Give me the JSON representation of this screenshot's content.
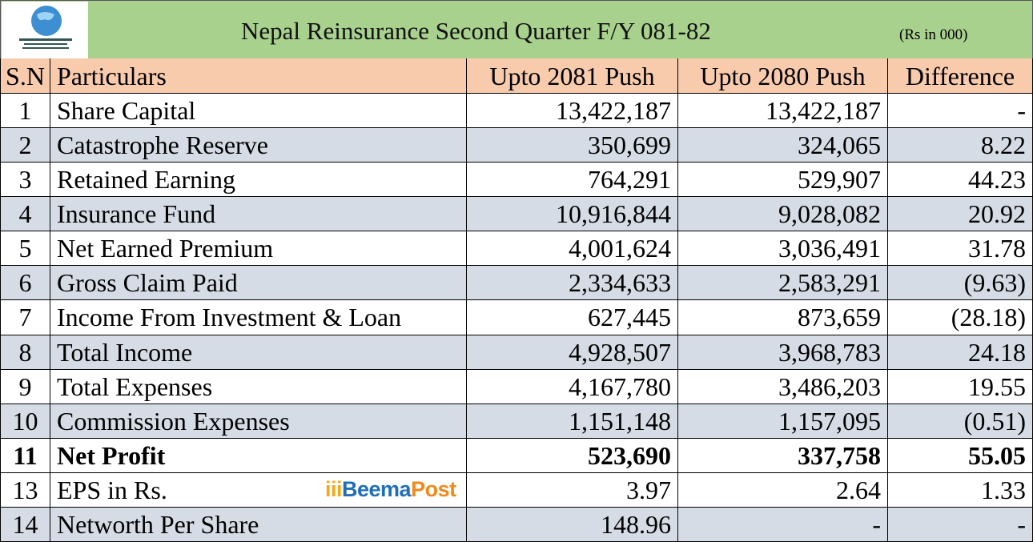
{
  "header": {
    "title": "Nepal Reinsurance Second Quarter F/Y 081-82",
    "unit": "(Rs in 000)"
  },
  "watermark": {
    "part1": "Beema",
    "part2": "Post"
  },
  "table": {
    "columns": [
      "S.N",
      "Particulars",
      "Upto 2081 Push",
      "Upto 2080 Push",
      "Difference"
    ],
    "rows": [
      [
        "1",
        "Share Capital",
        "13,422,187",
        "13,422,187",
        "-"
      ],
      [
        "2",
        "Catastrophe Reserve",
        "350,699",
        "324,065",
        "8.22"
      ],
      [
        "3",
        "Retained Earning",
        "764,291",
        "529,907",
        "44.23"
      ],
      [
        "4",
        "Insurance Fund",
        "10,916,844",
        "9,028,082",
        "20.92"
      ],
      [
        "5",
        "Net Earned Premium",
        "4,001,624",
        "3,036,491",
        "31.78"
      ],
      [
        "6",
        "Gross Claim Paid",
        "2,334,633",
        "2,583,291",
        "(9.63)"
      ],
      [
        "7",
        "Income From Investment & Loan",
        "627,445",
        "873,659",
        "(28.18)"
      ],
      [
        "8",
        "Total Income",
        "4,928,507",
        "3,968,783",
        "24.18"
      ],
      [
        "9",
        "Total Expenses",
        "4,167,780",
        "3,486,203",
        "19.55"
      ],
      [
        "10",
        "Commission Expenses",
        "1,151,148",
        "1,157,095",
        "(0.51)"
      ],
      [
        "11",
        "Net Profit",
        "523,690",
        "337,758",
        "55.05"
      ],
      [
        "13",
        "EPS in Rs.",
        "3.97",
        "2.64",
        "1.33"
      ],
      [
        "14",
        "Networth Per Share",
        "148.96",
        "-",
        "-"
      ]
    ]
  }
}
